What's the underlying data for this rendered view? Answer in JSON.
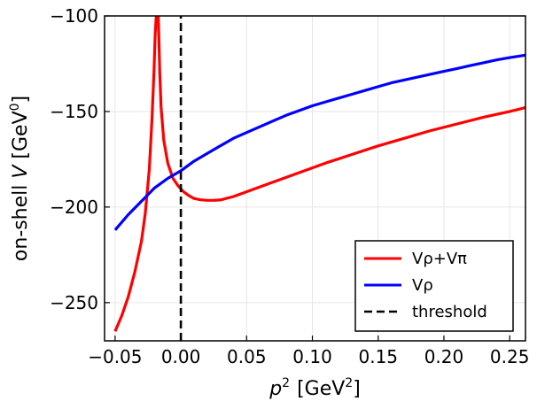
{
  "chart_data": {
    "type": "line",
    "xlabel": "p",
    "xlabel_sup": "2",
    "xlabel_unit_pre": "[GeV",
    "xlabel_unit_sup": "2",
    "xlabel_unit_post": "]",
    "ylabel_pre": "on-shell ",
    "ylabel_var": "V",
    "ylabel_unit_pre": " [GeV",
    "ylabel_unit_sup": "0",
    "ylabel_unit_post": "]",
    "xlim": [
      -0.058,
      0.262
    ],
    "ylim": [
      -270,
      -100
    ],
    "xticks": [
      -0.05,
      0.0,
      0.05,
      0.1,
      0.15,
      0.2,
      0.25
    ],
    "xtick_labels": [
      "−0.05",
      "0.00",
      "0.05",
      "0.10",
      "0.15",
      "0.20",
      "0.25"
    ],
    "yticks": [
      -250,
      -200,
      -150,
      -100
    ],
    "ytick_labels": [
      "−250",
      "−200",
      "−150",
      "−100"
    ],
    "grid": true,
    "legend_position": "bottom-right",
    "series": [
      {
        "name": "Vρ+Vπ",
        "color": "#ff0000",
        "style": "solid",
        "x": [
          -0.05,
          -0.045,
          -0.04,
          -0.035,
          -0.03,
          -0.027,
          -0.024,
          -0.022,
          -0.0205,
          -0.0195,
          -0.0188,
          -0.0184
        ],
        "y": [
          -265,
          -257,
          -247,
          -234,
          -218,
          -203,
          -180,
          -155,
          -130,
          -110,
          -101,
          -100
        ],
        "x2": [
          -0.0172,
          -0.0168,
          -0.016,
          -0.015,
          -0.013,
          -0.01,
          -0.006,
          -0.002,
          0.002,
          0.006,
          0.01,
          0.015,
          0.02,
          0.025,
          0.03,
          0.04,
          0.05,
          0.07,
          0.09,
          0.11,
          0.13,
          0.15,
          0.17,
          0.19,
          0.21,
          0.23,
          0.25,
          0.262
        ],
        "y2": [
          -100,
          -110,
          -130,
          -148,
          -165,
          -177,
          -185,
          -189,
          -192,
          -194,
          -195.5,
          -196.2,
          -196.5,
          -196.5,
          -196.3,
          -194.5,
          -192,
          -187,
          -182,
          -177,
          -172.5,
          -168,
          -164,
          -160,
          -156.5,
          -153,
          -150,
          -148
        ]
      },
      {
        "name": "Vρ",
        "color": "#0000ff",
        "style": "solid",
        "x": [
          -0.05,
          -0.04,
          -0.03,
          -0.02,
          -0.01,
          0.0,
          0.01,
          0.02,
          0.03,
          0.04,
          0.05,
          0.06,
          0.07,
          0.08,
          0.09,
          0.1,
          0.11,
          0.12,
          0.13,
          0.14,
          0.15,
          0.16,
          0.17,
          0.18,
          0.19,
          0.2,
          0.21,
          0.22,
          0.23,
          0.24,
          0.25,
          0.262
        ],
        "y": [
          -212,
          -204,
          -197,
          -190,
          -185,
          -181,
          -176,
          -172,
          -168,
          -164,
          -161,
          -158,
          -155,
          -152,
          -149.5,
          -147,
          -145,
          -143,
          -141,
          -139,
          -137,
          -135,
          -133.5,
          -132,
          -130.5,
          -129,
          -127.5,
          -126,
          -124.5,
          -123,
          -121.8,
          -120.5
        ]
      },
      {
        "name": "threshold",
        "color": "#000000",
        "style": "dashed",
        "x": [
          0.0,
          0.0
        ],
        "y": [
          -270,
          -100
        ]
      }
    ]
  }
}
